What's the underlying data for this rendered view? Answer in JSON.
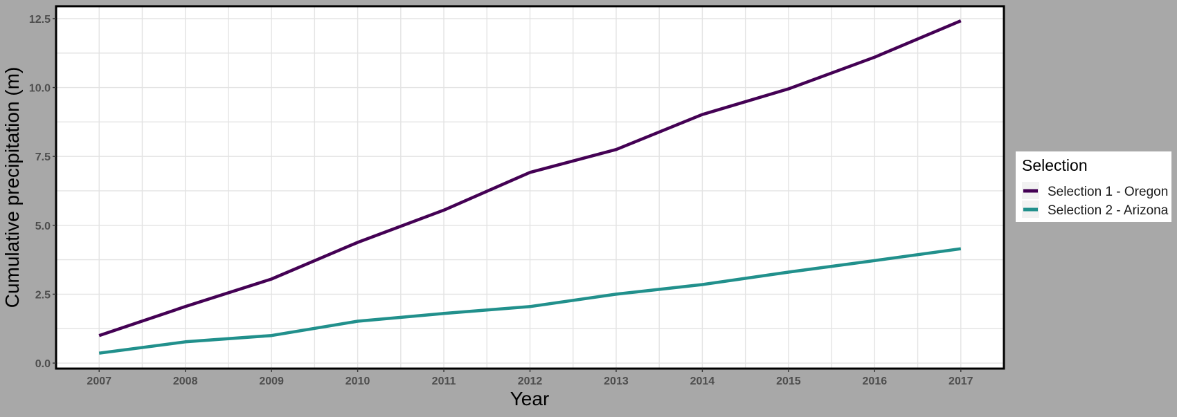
{
  "chart_data": {
    "type": "line",
    "xlabel": "Year",
    "ylabel": "Cumulative precipitation (m)",
    "x": [
      2007,
      2008,
      2009,
      2010,
      2011,
      2012,
      2013,
      2014,
      2015,
      2016,
      2017
    ],
    "xlim": [
      2006.5,
      2017.5
    ],
    "ylim": [
      -0.2,
      12.95
    ],
    "yticks": [
      0.0,
      2.5,
      5.0,
      7.5,
      10.0,
      12.5
    ],
    "ytick_labels": [
      "0.0",
      "2.5",
      "5.0",
      "7.5",
      "10.0",
      "12.5"
    ],
    "xtick_labels": [
      "2007",
      "2008",
      "2009",
      "2010",
      "2011",
      "2012",
      "2013",
      "2014",
      "2015",
      "2016",
      "2017"
    ],
    "grid": true,
    "legend": {
      "title": "Selection",
      "placement": "right"
    },
    "series": [
      {
        "name": "Selection 1 -  Oregon",
        "color": "#440154",
        "values": [
          1.0,
          2.05,
          3.05,
          4.38,
          5.55,
          6.92,
          7.75,
          9.02,
          9.95,
          11.1,
          12.42
        ]
      },
      {
        "name": "Selection 2 -  Arizona",
        "color": "#21908c",
        "values": [
          0.36,
          0.77,
          1.0,
          1.52,
          1.8,
          2.05,
          2.5,
          2.85,
          3.3,
          3.72,
          4.15
        ]
      }
    ]
  },
  "colors": {
    "page_background": "#a8a8a8",
    "panel_background": "#ffffff",
    "grid": "#e3e3e3",
    "frame": "#000000"
  }
}
